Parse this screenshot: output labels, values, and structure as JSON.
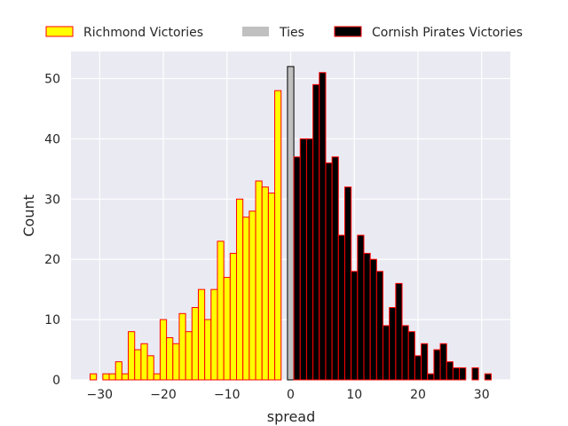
{
  "chart_data": {
    "type": "bar",
    "title": "",
    "xlabel": "spread",
    "ylabel": "Count",
    "xlim": [
      -34.5,
      34.5
    ],
    "ylim": [
      0,
      54.5
    ],
    "xticks": [
      -30,
      -20,
      -10,
      0,
      10,
      20,
      30
    ],
    "yticks": [
      0,
      10,
      20,
      30,
      40,
      50
    ],
    "grid": true,
    "legend_position": "top",
    "bin_width": 1,
    "series": [
      {
        "name": "Richmond Victories",
        "fill": "#ffff00",
        "edge": "#ff0000",
        "x": [
          -31,
          -29,
          -28,
          -27,
          -26,
          -25,
          -24,
          -23,
          -22,
          -21,
          -20,
          -19,
          -18,
          -17,
          -16,
          -15,
          -14,
          -13,
          -12,
          -11,
          -10,
          -9,
          -8,
          -7,
          -6,
          -5,
          -4,
          -3,
          -2,
          -1
        ],
        "values": [
          1,
          1,
          1,
          3,
          1,
          8,
          5,
          6,
          4,
          1,
          10,
          7,
          6,
          11,
          8,
          12,
          15,
          10,
          15,
          23,
          17,
          21,
          30,
          27,
          28,
          33,
          32,
          31,
          48,
          0
        ]
      },
      {
        "name": "Ties",
        "fill": "#c0c0c0",
        "edge": "#000000",
        "x": [
          0
        ],
        "values": [
          52
        ]
      },
      {
        "name": "Cornish Pirates Victories",
        "fill": "#000000",
        "edge": "#ff0000",
        "x": [
          1,
          2,
          3,
          4,
          5,
          6,
          7,
          8,
          9,
          10,
          11,
          12,
          13,
          14,
          15,
          16,
          17,
          18,
          19,
          20,
          21,
          22,
          23,
          24,
          25,
          26,
          27,
          29,
          31
        ],
        "values": [
          37,
          40,
          40,
          49,
          51,
          36,
          37,
          24,
          32,
          18,
          24,
          21,
          20,
          18,
          9,
          12,
          16,
          9,
          8,
          4,
          6,
          1,
          5,
          6,
          3,
          2,
          2,
          2,
          1
        ]
      }
    ]
  }
}
